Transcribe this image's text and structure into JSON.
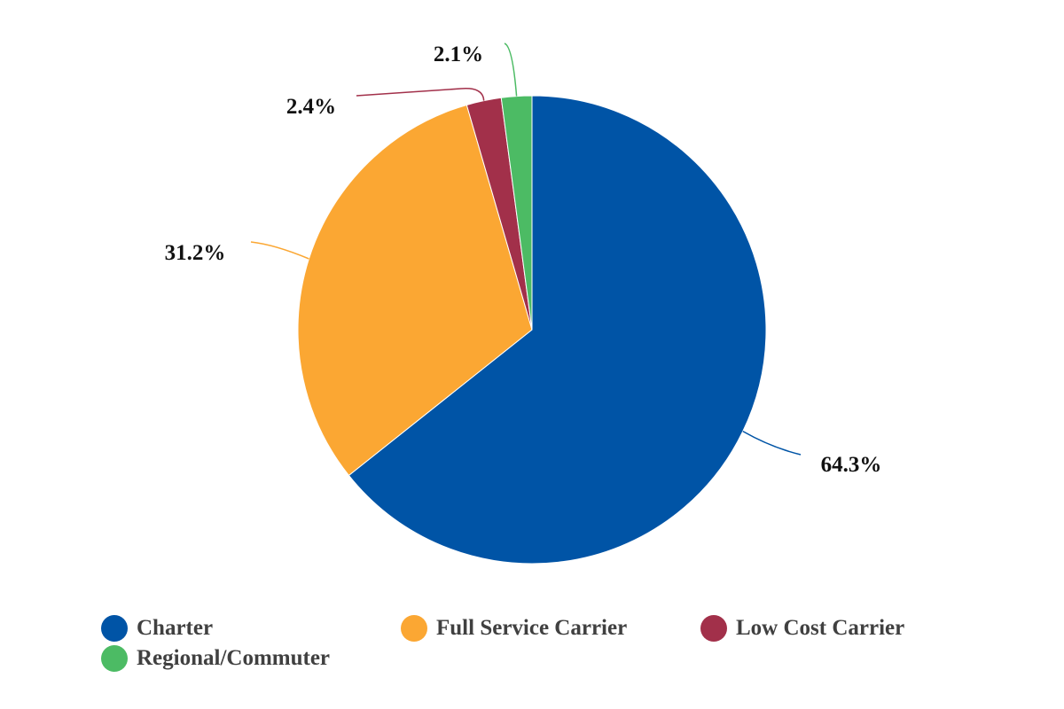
{
  "chart_data": {
    "type": "pie",
    "title": "",
    "start_angle_deg": 0,
    "direction": "clockwise",
    "legend_position": "bottom",
    "categories": [
      "Charter",
      "Full Service Carrier",
      "Low Cost Carrier",
      "Regional/Commuter"
    ],
    "values": [
      64.3,
      31.2,
      2.4,
      2.1
    ],
    "data_labels": [
      "64.3%",
      "31.2%",
      "2.4%",
      "2.1%"
    ],
    "colors": [
      "#0054a6",
      "#fba733",
      "#a2304a",
      "#4cbb64"
    ]
  }
}
